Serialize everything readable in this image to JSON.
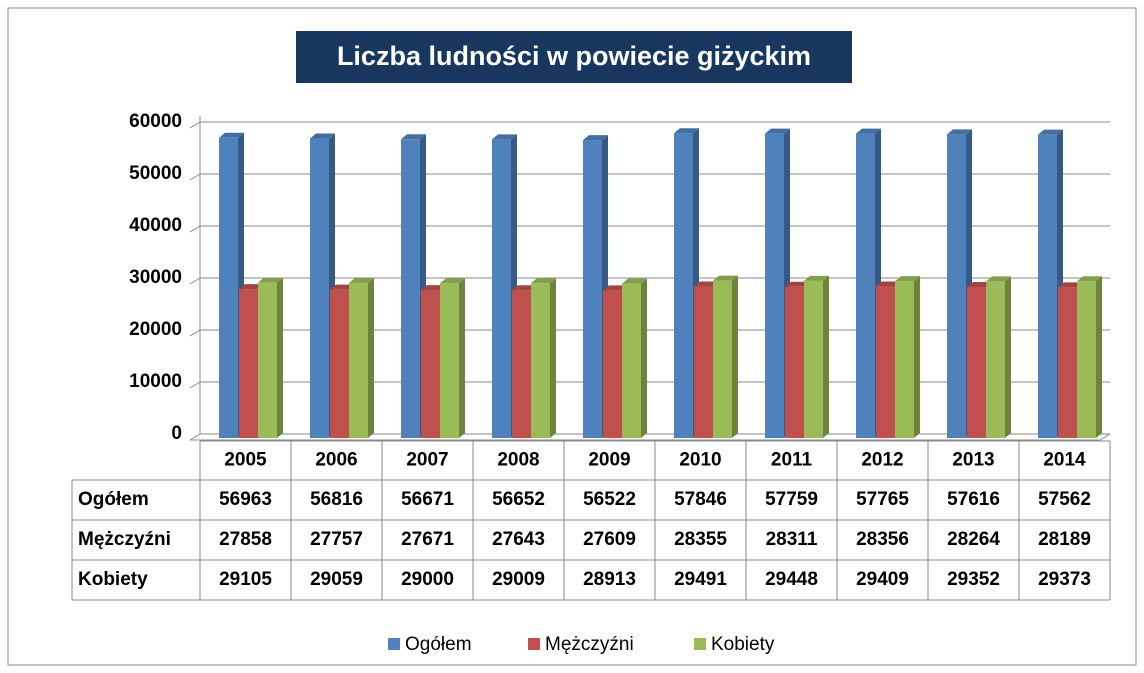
{
  "chart_data": {
    "type": "bar",
    "title": "Liczba ludności w powiecie giżyckim",
    "categories": [
      "2005",
      "2006",
      "2007",
      "2008",
      "2009",
      "2010",
      "2011",
      "2012",
      "2013",
      "2014"
    ],
    "series": [
      {
        "name": "Ogółem",
        "color": "#4F81BD",
        "values": [
          56963,
          56816,
          56671,
          56652,
          56522,
          57846,
          57759,
          57765,
          57616,
          57562
        ]
      },
      {
        "name": "Mężczyźni",
        "color": "#C0504D",
        "values": [
          27858,
          27757,
          27671,
          27643,
          27609,
          28355,
          28311,
          28356,
          28264,
          28189
        ]
      },
      {
        "name": "Kobiety",
        "color": "#9BBB59",
        "values": [
          29105,
          29059,
          29000,
          29009,
          28913,
          29491,
          29448,
          29409,
          29352,
          29373
        ]
      }
    ],
    "ylim": [
      0,
      60000
    ],
    "yticks": [
      0,
      10000,
      20000,
      30000,
      40000,
      50000,
      60000
    ],
    "grid": true,
    "legend": "bottom"
  }
}
